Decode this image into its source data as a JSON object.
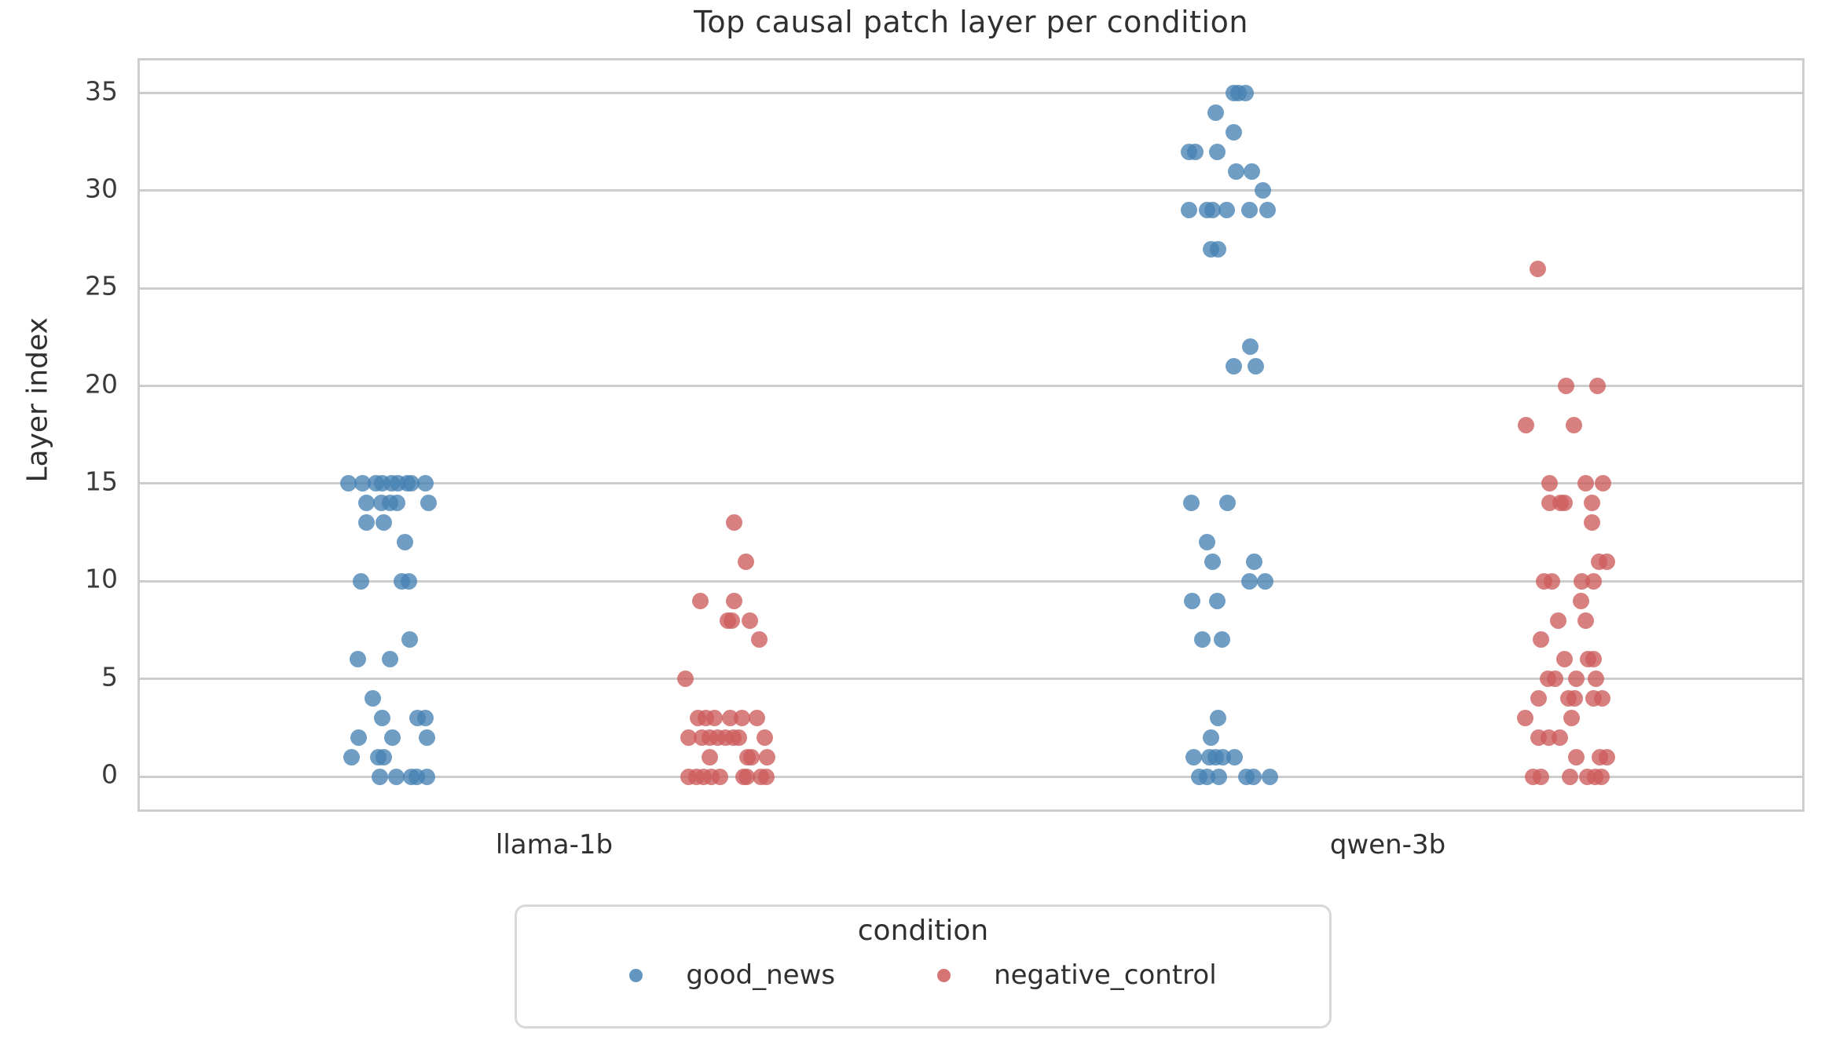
{
  "chart_data": {
    "type": "scatter",
    "subtype": "strip-plot-dodged",
    "title": "Top causal patch layer per condition",
    "xlabel": "",
    "ylabel": "Layer index",
    "categories": [
      "llama-1b",
      "qwen-3b"
    ],
    "yticks": [
      0,
      5,
      10,
      15,
      20,
      25,
      30,
      35
    ],
    "ylim": [
      -1.9,
      36.7
    ],
    "grid": "horizontal",
    "legend": {
      "title": "condition",
      "position": "below-plot",
      "entries": [
        {
          "label": "good_news",
          "color": "#4682b4"
        },
        {
          "label": "negative_control",
          "color": "#cd5c5c"
        }
      ]
    },
    "series": [
      {
        "name": "good_news",
        "category_index": 0,
        "color": "#4682b4",
        "points": [
          [
            15,
            -53
          ],
          [
            15,
            -35
          ],
          [
            15,
            -18
          ],
          [
            15,
            -10
          ],
          [
            15,
            2
          ],
          [
            15,
            10
          ],
          [
            15,
            22
          ],
          [
            15,
            27
          ],
          [
            15,
            45
          ],
          [
            14,
            -30
          ],
          [
            14,
            -11
          ],
          [
            14,
            0
          ],
          [
            14,
            9
          ],
          [
            14,
            49
          ],
          [
            13,
            -30
          ],
          [
            13,
            -8
          ],
          [
            12,
            19
          ],
          [
            10,
            -37
          ],
          [
            10,
            15
          ],
          [
            10,
            24
          ],
          [
            7,
            25
          ],
          [
            6,
            -41
          ],
          [
            6,
            0
          ],
          [
            4,
            -22
          ],
          [
            3,
            -10
          ],
          [
            3,
            35
          ],
          [
            3,
            45
          ],
          [
            2,
            -40
          ],
          [
            2,
            3
          ],
          [
            2,
            47
          ],
          [
            1,
            -49
          ],
          [
            1,
            -15
          ],
          [
            1,
            -8
          ],
          [
            0,
            -13
          ],
          [
            0,
            8
          ],
          [
            0,
            27
          ],
          [
            0,
            34
          ],
          [
            0,
            47
          ]
        ]
      },
      {
        "name": "negative_control",
        "category_index": 0,
        "color": "#cd5c5c",
        "points": [
          [
            13,
            14
          ],
          [
            11,
            29
          ],
          [
            9,
            -29
          ],
          [
            9,
            14
          ],
          [
            8,
            6
          ],
          [
            8,
            11
          ],
          [
            8,
            34
          ],
          [
            7,
            46
          ],
          [
            5,
            -48
          ],
          [
            3,
            -32
          ],
          [
            3,
            -22
          ],
          [
            3,
            -11
          ],
          [
            3,
            9
          ],
          [
            3,
            24
          ],
          [
            3,
            43
          ],
          [
            2,
            -44
          ],
          [
            2,
            -27
          ],
          [
            2,
            -17
          ],
          [
            2,
            -7
          ],
          [
            2,
            3
          ],
          [
            2,
            13
          ],
          [
            2,
            20
          ],
          [
            2,
            53
          ],
          [
            1,
            -17
          ],
          [
            1,
            31
          ],
          [
            1,
            36
          ],
          [
            1,
            56
          ],
          [
            0,
            -44
          ],
          [
            0,
            -34
          ],
          [
            0,
            -25
          ],
          [
            0,
            -15
          ],
          [
            0,
            -4
          ],
          [
            0,
            26
          ],
          [
            0,
            30
          ],
          [
            0,
            48
          ],
          [
            0,
            55
          ]
        ]
      },
      {
        "name": "good_news",
        "category_index": 1,
        "color": "#4682b4",
        "points": [
          [
            35,
            13
          ],
          [
            35,
            19
          ],
          [
            35,
            28
          ],
          [
            34,
            -10
          ],
          [
            33,
            13
          ],
          [
            32,
            -44
          ],
          [
            32,
            -36
          ],
          [
            32,
            -8
          ],
          [
            31,
            16
          ],
          [
            31,
            36
          ],
          [
            30,
            50
          ],
          [
            29,
            -44
          ],
          [
            29,
            -21
          ],
          [
            29,
            -14
          ],
          [
            29,
            4
          ],
          [
            29,
            33
          ],
          [
            29,
            56
          ],
          [
            27,
            -16
          ],
          [
            27,
            -7
          ],
          [
            22,
            34
          ],
          [
            21,
            13
          ],
          [
            21,
            41
          ],
          [
            14,
            -41
          ],
          [
            14,
            5
          ],
          [
            12,
            -21
          ],
          [
            11,
            -14
          ],
          [
            11,
            39
          ],
          [
            10,
            33
          ],
          [
            10,
            53
          ],
          [
            9,
            -40
          ],
          [
            9,
            -8
          ],
          [
            7,
            -27
          ],
          [
            7,
            -2
          ],
          [
            3,
            -7
          ],
          [
            2,
            -16
          ],
          [
            1,
            -38
          ],
          [
            1,
            -18
          ],
          [
            1,
            -10
          ],
          [
            1,
            -1
          ],
          [
            1,
            14
          ],
          [
            0,
            -31
          ],
          [
            0,
            -21
          ],
          [
            0,
            -6
          ],
          [
            0,
            29
          ],
          [
            0,
            38
          ],
          [
            0,
            59
          ]
        ]
      },
      {
        "name": "negative_control",
        "category_index": 1,
        "color": "#cd5c5c",
        "points": [
          [
            26,
            -24
          ],
          [
            20,
            12
          ],
          [
            20,
            52
          ],
          [
            18,
            -39
          ],
          [
            18,
            22
          ],
          [
            15,
            -9
          ],
          [
            15,
            37
          ],
          [
            15,
            59
          ],
          [
            14,
            -9
          ],
          [
            14,
            5
          ],
          [
            14,
            10
          ],
          [
            14,
            45
          ],
          [
            13,
            45
          ],
          [
            11,
            54
          ],
          [
            11,
            64
          ],
          [
            10,
            -16
          ],
          [
            10,
            -6
          ],
          [
            10,
            32
          ],
          [
            10,
            47
          ],
          [
            9,
            31
          ],
          [
            8,
            2
          ],
          [
            8,
            37
          ],
          [
            7,
            -20
          ],
          [
            6,
            10
          ],
          [
            6,
            40
          ],
          [
            6,
            47
          ],
          [
            5,
            -11
          ],
          [
            5,
            -2
          ],
          [
            5,
            25
          ],
          [
            5,
            50
          ],
          [
            4,
            -23
          ],
          [
            4,
            15
          ],
          [
            4,
            23
          ],
          [
            4,
            47
          ],
          [
            4,
            58
          ],
          [
            3,
            -40
          ],
          [
            3,
            19
          ],
          [
            2,
            -23
          ],
          [
            2,
            -10
          ],
          [
            2,
            4
          ],
          [
            1,
            25
          ],
          [
            1,
            55
          ],
          [
            1,
            64
          ],
          [
            0,
            -30
          ],
          [
            0,
            -20
          ],
          [
            0,
            17
          ],
          [
            0,
            39
          ],
          [
            0,
            49
          ],
          [
            0,
            57
          ]
        ]
      }
    ]
  }
}
